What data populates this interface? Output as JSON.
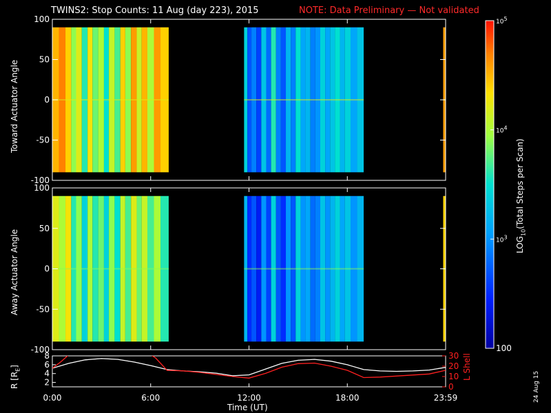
{
  "title": "TWINS2: Stop Counts: 11 Aug (day 223), 2015",
  "note": "NOTE: Data Preliminary — Not validated",
  "footer_date": "24 Aug 15",
  "colors": {
    "note": "#ff2a2a",
    "lshell": "#ff2020",
    "radius": "#ffffff"
  },
  "chart_data": [
    {
      "type": "heatmap",
      "panel": "toward",
      "ylabel": "Toward Actuator Angle",
      "ylim": [
        -100,
        100
      ],
      "yticks": [
        100,
        50,
        0,
        -50,
        -100
      ],
      "angle_range": [
        -90,
        90
      ],
      "x_unit": "hours UT",
      "data_intervals": [
        [
          0.0,
          7.1
        ],
        [
          11.7,
          19.0
        ],
        [
          23.85,
          24.0
        ]
      ],
      "column_log10_counts": [
        [
          0.2,
          4.5
        ],
        [
          0.6,
          4.7
        ],
        [
          1.0,
          4.4
        ],
        [
          1.3,
          3.9
        ],
        [
          1.6,
          4.2
        ],
        [
          2.0,
          3.6
        ],
        [
          2.3,
          4.3
        ],
        [
          2.6,
          3.8
        ],
        [
          3.0,
          4.0
        ],
        [
          3.3,
          3.5
        ],
        [
          3.6,
          4.1
        ],
        [
          4.0,
          3.7
        ],
        [
          4.3,
          4.4
        ],
        [
          4.6,
          3.9
        ],
        [
          5.0,
          4.6
        ],
        [
          5.3,
          4.1
        ],
        [
          5.6,
          4.5
        ],
        [
          6.0,
          4.0
        ],
        [
          6.4,
          4.6
        ],
        [
          6.8,
          4.4
        ],
        [
          11.8,
          3.4
        ],
        [
          12.0,
          2.7
        ],
        [
          12.3,
          2.9
        ],
        [
          12.6,
          2.6
        ],
        [
          12.9,
          3.3
        ],
        [
          13.2,
          2.8
        ],
        [
          13.5,
          3.6
        ],
        [
          13.8,
          2.9
        ],
        [
          14.1,
          2.7
        ],
        [
          14.4,
          3.2
        ],
        [
          14.7,
          2.9
        ],
        [
          15.0,
          3.5
        ],
        [
          15.3,
          3.1
        ],
        [
          15.6,
          3.2
        ],
        [
          15.9,
          2.9
        ],
        [
          16.2,
          3.0
        ],
        [
          16.5,
          3.4
        ],
        [
          16.8,
          3.1
        ],
        [
          17.1,
          3.3
        ],
        [
          17.4,
          3.5
        ],
        [
          17.7,
          3.2
        ],
        [
          18.0,
          3.4
        ],
        [
          18.4,
          3.1
        ],
        [
          18.8,
          3.3
        ],
        [
          23.9,
          4.6
        ]
      ]
    },
    {
      "type": "heatmap",
      "panel": "away",
      "ylabel": "Away Actuator Angle",
      "ylim": [
        -100,
        100
      ],
      "yticks": [
        100,
        50,
        0,
        -50,
        -100
      ],
      "angle_range": [
        -90,
        90
      ],
      "x_unit": "hours UT",
      "data_intervals": [
        [
          0.0,
          7.1
        ],
        [
          11.7,
          19.0
        ],
        [
          23.85,
          24.0
        ]
      ],
      "column_log10_counts": [
        [
          0.2,
          4.2
        ],
        [
          0.6,
          4.0
        ],
        [
          1.0,
          4.3
        ],
        [
          1.3,
          3.6
        ],
        [
          1.6,
          3.9
        ],
        [
          2.0,
          3.4
        ],
        [
          2.3,
          4.0
        ],
        [
          2.6,
          3.6
        ],
        [
          3.0,
          3.8
        ],
        [
          3.3,
          3.4
        ],
        [
          3.6,
          3.9
        ],
        [
          4.0,
          3.5
        ],
        [
          4.3,
          4.1
        ],
        [
          4.6,
          3.7
        ],
        [
          5.0,
          4.2
        ],
        [
          5.3,
          3.8
        ],
        [
          5.6,
          4.1
        ],
        [
          6.0,
          3.7
        ],
        [
          6.4,
          4.0
        ],
        [
          6.8,
          3.6
        ],
        [
          11.8,
          3.2
        ],
        [
          12.0,
          2.5
        ],
        [
          12.3,
          2.7
        ],
        [
          12.6,
          2.4
        ],
        [
          12.9,
          3.0
        ],
        [
          13.2,
          2.6
        ],
        [
          13.5,
          3.4
        ],
        [
          13.8,
          2.7
        ],
        [
          14.1,
          2.5
        ],
        [
          14.4,
          3.0
        ],
        [
          14.7,
          2.7
        ],
        [
          15.0,
          3.4
        ],
        [
          15.3,
          3.0
        ],
        [
          15.6,
          3.1
        ],
        [
          15.9,
          2.8
        ],
        [
          16.2,
          2.9
        ],
        [
          16.5,
          3.3
        ],
        [
          16.8,
          3.0
        ],
        [
          17.1,
          3.2
        ],
        [
          17.4,
          3.4
        ],
        [
          17.7,
          3.1
        ],
        [
          18.0,
          3.3
        ],
        [
          18.4,
          3.0
        ],
        [
          18.8,
          3.2
        ],
        [
          23.9,
          4.4
        ]
      ]
    },
    {
      "type": "line",
      "panel": "orbit",
      "ylabel": "R [R",
      "ylabel_sub": "E",
      "ylabel_end": "]",
      "ylim": [
        1,
        8
      ],
      "yticks": [
        8,
        6,
        4,
        2
      ],
      "y2label": "L Shell",
      "y2lim": [
        0,
        30
      ],
      "y2ticks": [
        30,
        20,
        10,
        0
      ],
      "xlabel": "Time (UT)",
      "xlim": [
        0,
        24
      ],
      "xticks": [
        0,
        6,
        12,
        18,
        24
      ],
      "xticklabels": [
        "0:00",
        "6:00",
        "12:00",
        "18:00",
        "23:59"
      ],
      "series": [
        {
          "values_axis": "left",
          "x": [
            0,
            1,
            2,
            3,
            4,
            5,
            6,
            7,
            8,
            9,
            10,
            11,
            12,
            13,
            14,
            15,
            16,
            17,
            18,
            19,
            20,
            21,
            22,
            23,
            24
          ],
          "y": [
            5.2,
            6.3,
            7.1,
            7.4,
            7.2,
            6.6,
            5.8,
            4.9,
            4.6,
            4.4,
            4.1,
            3.5,
            3.7,
            5.0,
            6.3,
            7.0,
            7.2,
            6.8,
            6.0,
            4.9,
            4.6,
            4.5,
            4.6,
            4.8,
            5.4
          ]
        },
        {
          "values_axis": "right",
          "x": [
            0,
            0.5,
            1,
            2,
            3,
            4,
            5,
            6,
            6.3,
            7,
            8,
            9,
            10,
            11,
            12,
            13,
            14,
            15,
            16,
            17,
            18,
            19,
            20,
            21,
            22,
            23,
            24
          ],
          "y": [
            18,
            24,
            31,
            31,
            31,
            31,
            31,
            31,
            28,
            16,
            15.5,
            14,
            12,
            10,
            8.5,
            13,
            19,
            22.5,
            23,
            20,
            16,
            9,
            9.5,
            10.5,
            11.5,
            12.5,
            16
          ]
        }
      ]
    }
  ],
  "colorbar": {
    "label_pre": "LOG",
    "label_sub": "10",
    "label_post": "(Total Steps per Scan)",
    "log_range": [
      2,
      5
    ],
    "ticks": [
      {
        "log": 5,
        "label": "10",
        "sup": "5"
      },
      {
        "log": 4,
        "label": "10",
        "sup": "4"
      },
      {
        "log": 3,
        "label": "10",
        "sup": "3"
      },
      {
        "log": 2,
        "label": "100",
        "sup": ""
      }
    ]
  }
}
